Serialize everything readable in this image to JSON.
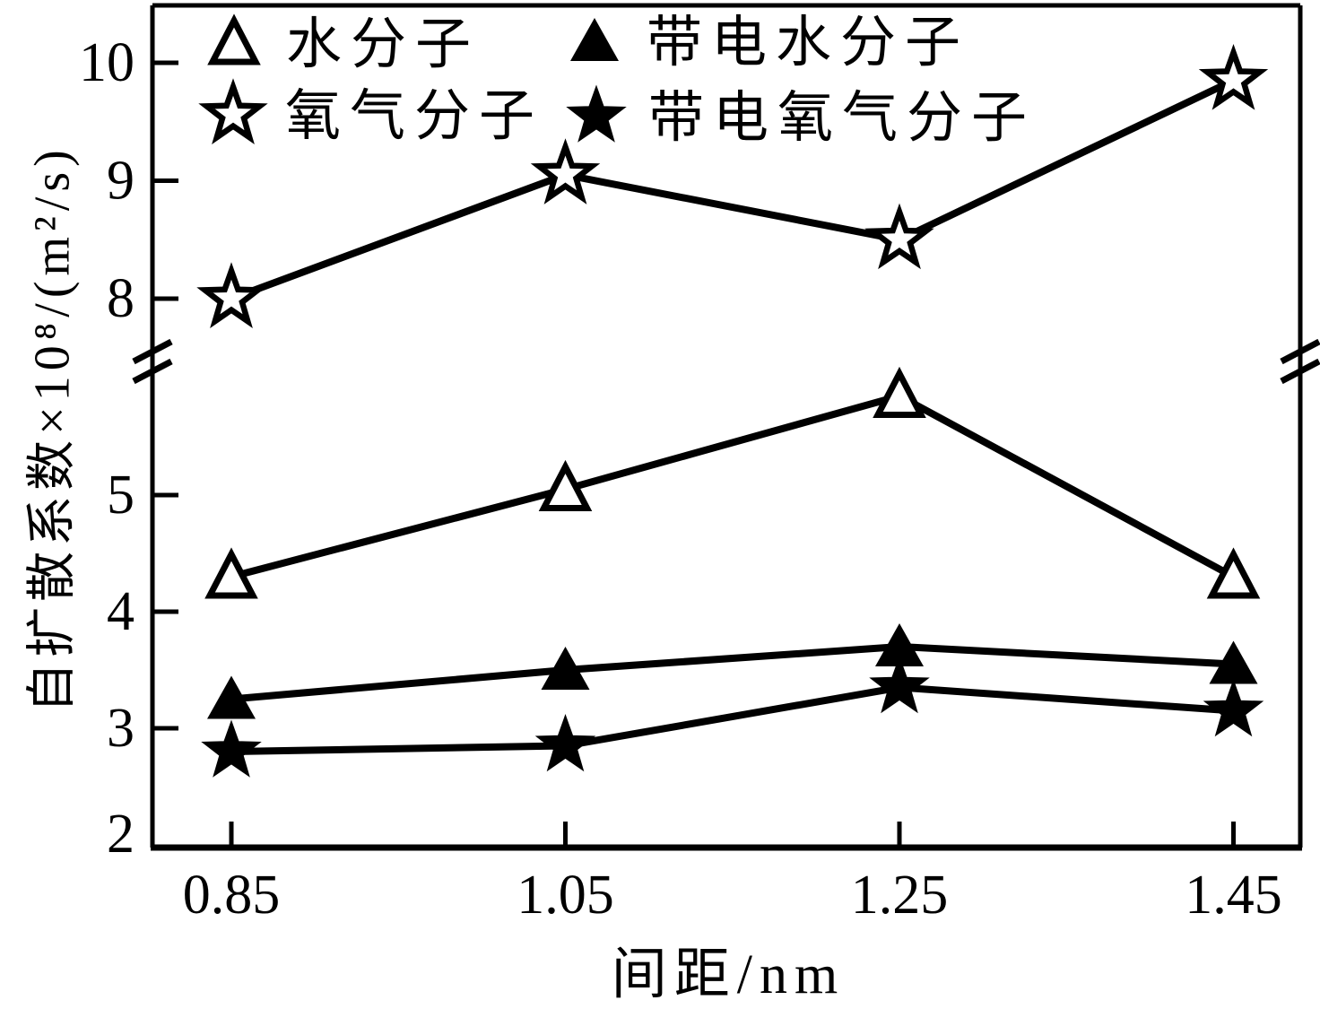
{
  "figure": {
    "background": "#ffffff",
    "ink": "#000000"
  },
  "chart_data": {
    "type": "line",
    "title": "",
    "xlabel": "间距/nm",
    "ylabel": "自扩散系数×10⁸/(m²/s)",
    "x": [
      0.85,
      1.05,
      1.25,
      1.45
    ],
    "x_tick_labels": [
      "0.85",
      "1.05",
      "1.25",
      "1.45"
    ],
    "y_axis": {
      "broken": true,
      "lower_ticks": [
        2,
        3,
        4,
        5
      ],
      "upper_ticks": [
        8,
        9,
        10
      ],
      "lower_range": [
        2,
        6.6
      ],
      "upper_range": [
        7.4,
        10.3
      ]
    },
    "grid": false,
    "legend_position": "top-left-inside",
    "series": [
      {
        "key": "water",
        "name": "水分子",
        "marker": "triangle-open",
        "values": [
          4.3,
          5.05,
          5.85,
          4.3
        ]
      },
      {
        "key": "oxygen",
        "name": "氧气分子",
        "marker": "star-open",
        "values": [
          8.0,
          9.05,
          8.5,
          9.85
        ]
      },
      {
        "key": "charged-water",
        "name": "带电水分子",
        "marker": "triangle-filled",
        "values": [
          3.25,
          3.5,
          3.7,
          3.55
        ]
      },
      {
        "key": "charged-oxygen",
        "name": "带电氧气分子",
        "marker": "star-filled",
        "values": [
          2.8,
          2.85,
          3.35,
          3.15
        ]
      }
    ]
  }
}
